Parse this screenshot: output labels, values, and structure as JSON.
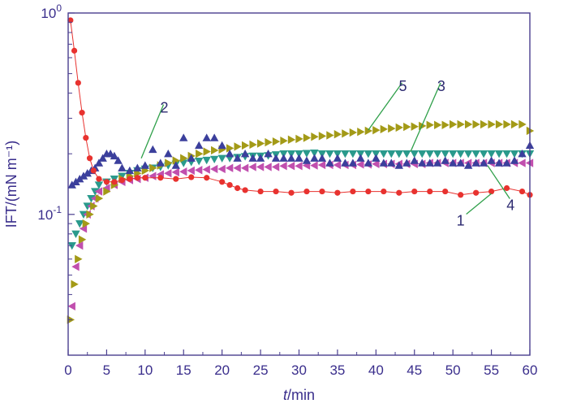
{
  "chart_data": {
    "type": "scatter",
    "title": "",
    "xlabel": "t/min",
    "xlabel_italic": "t",
    "xlabel_rest": "/min",
    "ylabel": "IFT/(mN m⁻¹)",
    "yscale": "log",
    "xlim": [
      0,
      60
    ],
    "ylim": [
      0.02,
      1.0
    ],
    "xticks": [
      0,
      5,
      10,
      15,
      20,
      25,
      30,
      35,
      40,
      45,
      50,
      55,
      60
    ],
    "yticks": [
      {
        "value": 1.0,
        "base": "10",
        "exp": "0"
      },
      {
        "value": 0.1,
        "base": "10",
        "exp": "-1"
      }
    ],
    "grid": false,
    "series": [
      {
        "name": "1",
        "color": "#e8322f",
        "marker": "circle",
        "line": true,
        "x": [
          0.3,
          0.8,
          1.3,
          1.8,
          2.3,
          2.8,
          3.3,
          4,
          5,
          6,
          7,
          8,
          9,
          10,
          12,
          14,
          16,
          18,
          20,
          21,
          22,
          23,
          25,
          27,
          29,
          31,
          33,
          35,
          37,
          39,
          41,
          43,
          45,
          47,
          49,
          51,
          53,
          55,
          57,
          59,
          60
        ],
        "y": [
          0.92,
          0.65,
          0.45,
          0.32,
          0.24,
          0.19,
          0.165,
          0.15,
          0.145,
          0.145,
          0.148,
          0.15,
          0.152,
          0.152,
          0.152,
          0.15,
          0.153,
          0.152,
          0.145,
          0.14,
          0.135,
          0.132,
          0.13,
          0.13,
          0.128,
          0.13,
          0.13,
          0.128,
          0.13,
          0.13,
          0.13,
          0.128,
          0.13,
          0.13,
          0.13,
          0.125,
          0.128,
          0.13,
          0.135,
          0.13,
          0.125
        ]
      },
      {
        "name": "2",
        "color": "#3b3f9c",
        "marker": "triangle-up",
        "line": false,
        "x": [
          0.5,
          1,
          1.5,
          2,
          2.5,
          3,
          3.5,
          4,
          4.5,
          5,
          5.5,
          6,
          6.5,
          7,
          8,
          9,
          10,
          11,
          12,
          13,
          14,
          15,
          16,
          17,
          18,
          19,
          20,
          21,
          22,
          23,
          24,
          25,
          26,
          27,
          28,
          29,
          30,
          31,
          32,
          33,
          34,
          35,
          36,
          37,
          38,
          39,
          40,
          41,
          42,
          43,
          44,
          45,
          46,
          47,
          48,
          49,
          50,
          51,
          52,
          53,
          54,
          55,
          56,
          57,
          58,
          59,
          60
        ],
        "y": [
          0.14,
          0.145,
          0.15,
          0.155,
          0.16,
          0.165,
          0.17,
          0.18,
          0.19,
          0.2,
          0.2,
          0.195,
          0.185,
          0.17,
          0.165,
          0.17,
          0.175,
          0.21,
          0.18,
          0.2,
          0.175,
          0.24,
          0.19,
          0.22,
          0.24,
          0.24,
          0.22,
          0.2,
          0.19,
          0.2,
          0.19,
          0.19,
          0.2,
          0.19,
          0.19,
          0.19,
          0.19,
          0.185,
          0.19,
          0.19,
          0.18,
          0.19,
          0.18,
          0.18,
          0.19,
          0.18,
          0.19,
          0.18,
          0.18,
          0.175,
          0.18,
          0.185,
          0.18,
          0.18,
          0.18,
          0.185,
          0.18,
          0.18,
          0.175,
          0.18,
          0.18,
          0.185,
          0.18,
          0.18,
          0.185,
          0.2,
          0.22
        ]
      },
      {
        "name": "3",
        "color": "#2a9a8c",
        "marker": "triangle-down",
        "line": false,
        "x": [
          0.5,
          1,
          1.5,
          2,
          2.5,
          3,
          3.5,
          4,
          5,
          6,
          7,
          8,
          9,
          10,
          11,
          12,
          13,
          14,
          15,
          16,
          17,
          18,
          19,
          20,
          21,
          22,
          23,
          24,
          25,
          26,
          27,
          28,
          29,
          30,
          31,
          32,
          33,
          34,
          35,
          36,
          37,
          38,
          39,
          40,
          41,
          42,
          43,
          44,
          45,
          46,
          47,
          48,
          49,
          50,
          51,
          52,
          53,
          54,
          55,
          56,
          57,
          58,
          59,
          60
        ],
        "y": [
          0.07,
          0.08,
          0.09,
          0.1,
          0.11,
          0.12,
          0.13,
          0.14,
          0.145,
          0.15,
          0.155,
          0.16,
          0.165,
          0.168,
          0.17,
          0.172,
          0.175,
          0.178,
          0.18,
          0.182,
          0.184,
          0.186,
          0.188,
          0.19,
          0.19,
          0.192,
          0.194,
          0.195,
          0.195,
          0.196,
          0.198,
          0.2,
          0.2,
          0.2,
          0.201,
          0.202,
          0.2,
          0.2,
          0.2,
          0.2,
          0.2,
          0.2,
          0.2,
          0.2,
          0.2,
          0.2,
          0.2,
          0.2,
          0.2,
          0.2,
          0.2,
          0.2,
          0.2,
          0.2,
          0.2,
          0.2,
          0.2,
          0.2,
          0.2,
          0.2,
          0.2,
          0.2,
          0.2,
          0.2
        ]
      },
      {
        "name": "4",
        "color": "#c14fae",
        "marker": "triangle-left",
        "line": false,
        "x": [
          0.5,
          1,
          1.5,
          2,
          2.5,
          3,
          3.5,
          4,
          5,
          6,
          7,
          8,
          9,
          10,
          11,
          12,
          13,
          14,
          15,
          16,
          17,
          18,
          19,
          20,
          21,
          22,
          23,
          24,
          25,
          26,
          27,
          28,
          29,
          30,
          31,
          32,
          33,
          34,
          35,
          36,
          37,
          38,
          39,
          40,
          41,
          42,
          43,
          44,
          45,
          46,
          47,
          48,
          49,
          50,
          51,
          52,
          53,
          54,
          55,
          56,
          57,
          58,
          59,
          60
        ],
        "y": [
          0.035,
          0.055,
          0.07,
          0.085,
          0.1,
          0.11,
          0.12,
          0.13,
          0.135,
          0.14,
          0.145,
          0.148,
          0.15,
          0.152,
          0.155,
          0.158,
          0.16,
          0.162,
          0.163,
          0.165,
          0.166,
          0.167,
          0.168,
          0.168,
          0.17,
          0.17,
          0.17,
          0.172,
          0.172,
          0.172,
          0.172,
          0.174,
          0.174,
          0.174,
          0.175,
          0.175,
          0.176,
          0.176,
          0.176,
          0.176,
          0.176,
          0.177,
          0.177,
          0.178,
          0.178,
          0.178,
          0.178,
          0.178,
          0.178,
          0.178,
          0.18,
          0.18,
          0.18,
          0.18,
          0.18,
          0.18,
          0.18,
          0.18,
          0.18,
          0.18,
          0.18,
          0.18,
          0.18,
          0.18
        ]
      },
      {
        "name": "5",
        "color": "#a39a17",
        "marker": "triangle-right",
        "line": false,
        "x": [
          0.3,
          0.8,
          1.3,
          1.8,
          2.3,
          2.8,
          3.3,
          4,
          5,
          6,
          7,
          8,
          9,
          10,
          11,
          12,
          13,
          14,
          15,
          16,
          17,
          18,
          19,
          20,
          21,
          22,
          23,
          24,
          25,
          26,
          27,
          28,
          29,
          30,
          31,
          32,
          33,
          34,
          35,
          36,
          37,
          38,
          39,
          40,
          41,
          42,
          43,
          44,
          45,
          46,
          47,
          48,
          49,
          50,
          51,
          52,
          53,
          54,
          55,
          56,
          57,
          58,
          59,
          60
        ],
        "y": [
          0.03,
          0.045,
          0.06,
          0.075,
          0.09,
          0.1,
          0.11,
          0.12,
          0.13,
          0.14,
          0.15,
          0.155,
          0.16,
          0.165,
          0.17,
          0.175,
          0.18,
          0.185,
          0.19,
          0.195,
          0.2,
          0.205,
          0.208,
          0.21,
          0.213,
          0.217,
          0.22,
          0.222,
          0.225,
          0.228,
          0.23,
          0.232,
          0.235,
          0.237,
          0.24,
          0.243,
          0.245,
          0.247,
          0.25,
          0.252,
          0.255,
          0.257,
          0.26,
          0.262,
          0.265,
          0.267,
          0.27,
          0.272,
          0.273,
          0.275,
          0.278,
          0.278,
          0.278,
          0.28,
          0.28,
          0.28,
          0.28,
          0.28,
          0.28,
          0.28,
          0.28,
          0.28,
          0.28,
          0.26
        ]
      }
    ],
    "annotations": [
      {
        "text": "1",
        "label_x": 51,
        "label_y": 0.088,
        "point_x": 55,
        "point_y": 0.127
      },
      {
        "text": "2",
        "label_x": 12.5,
        "label_y": 0.32,
        "point_x": 9.5,
        "point_y": 0.19
      },
      {
        "text": "3",
        "label_x": 48.5,
        "label_y": 0.41,
        "point_x": 44.5,
        "point_y": 0.205
      },
      {
        "text": "4",
        "label_x": 57.5,
        "label_y": 0.105,
        "point_x": 54.5,
        "point_y": 0.175
      },
      {
        "text": "5",
        "label_x": 43.5,
        "label_y": 0.41,
        "point_x": 39,
        "point_y": 0.262
      }
    ]
  }
}
